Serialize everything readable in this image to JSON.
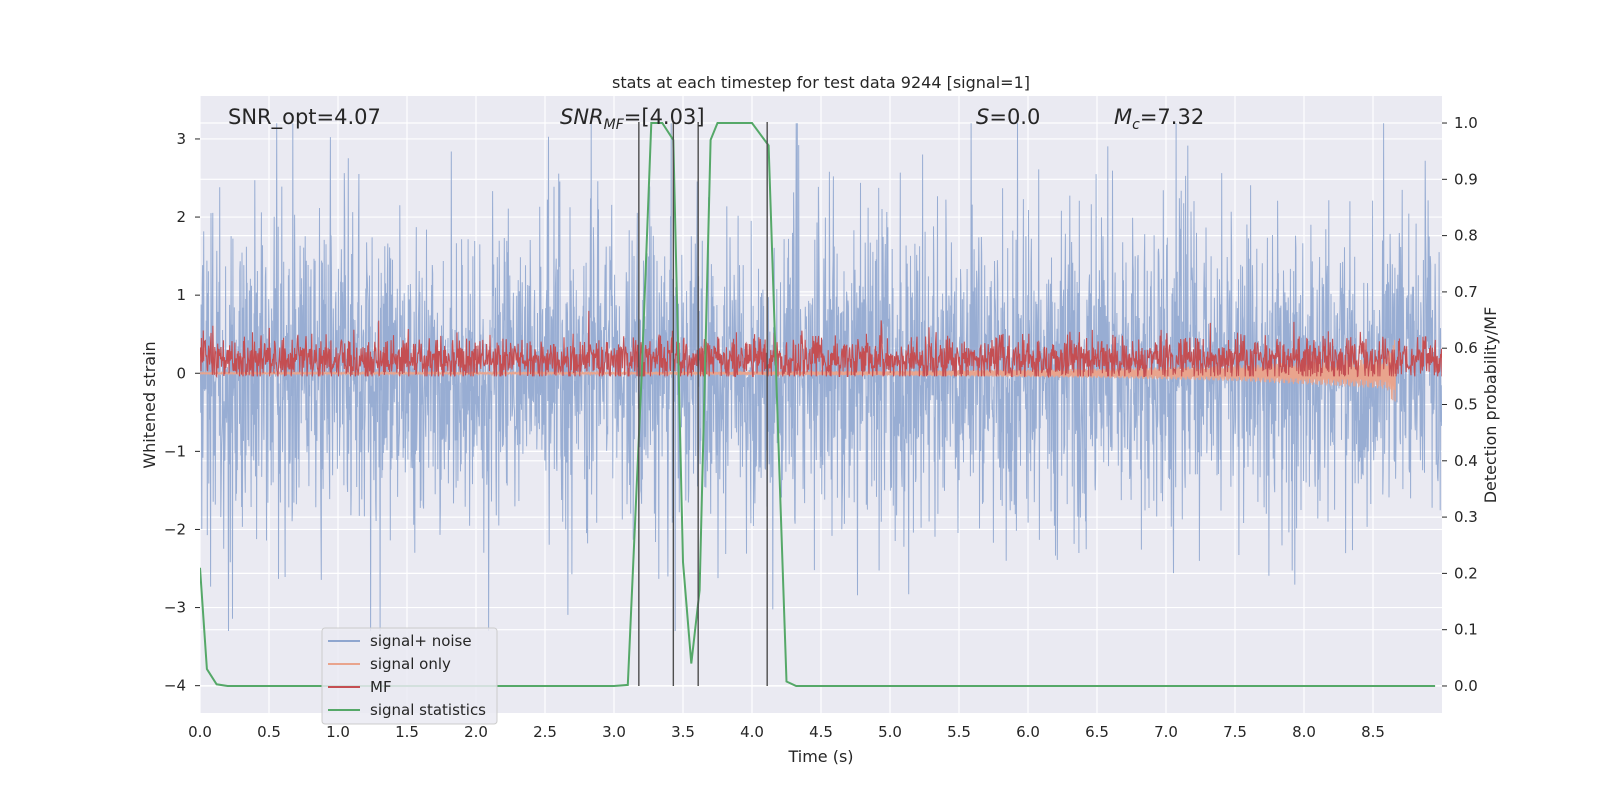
{
  "chart_data": {
    "type": "line",
    "title": "stats at each timestep for test data 9244 [signal=1]",
    "xlabel": "Time (s)",
    "ylabel": "Whitened strain",
    "ylabel_right": "Detection probability/MF",
    "xlim": [
      0.0,
      9.0
    ],
    "ylim": [
      -4.35,
      3.55
    ],
    "ylim_right": [
      -0.048,
      1.048
    ],
    "xticks": [
      "0.0",
      "0.5",
      "1.0",
      "1.5",
      "2.0",
      "2.5",
      "3.0",
      "3.5",
      "4.0",
      "4.5",
      "5.0",
      "5.5",
      "6.0",
      "6.5",
      "7.0",
      "7.5",
      "8.0",
      "8.5"
    ],
    "yticks": [
      "3",
      "2",
      "1",
      "0",
      "−1",
      "−2",
      "−3",
      "−4"
    ],
    "yticks_right": [
      "1.0",
      "0.9",
      "0.8",
      "0.7",
      "0.6",
      "0.5",
      "0.4",
      "0.3",
      "0.2",
      "0.1",
      "0.0"
    ],
    "grid": true,
    "legend_position": "lower-left",
    "annotations": {
      "snr_opt": "SNR_opt=4.07",
      "snr_mf_main": "SNR",
      "snr_mf_sub": "MF",
      "snr_mf_rest": "=[4.03]",
      "s_italic": "S",
      "s_rest": "=0.0",
      "mc_main": "M",
      "mc_sub": "c",
      "mc_rest": "=7.32"
    },
    "vlines": [
      3.18,
      3.43,
      3.61,
      4.11
    ],
    "series": [
      {
        "name": "signal+ noise",
        "color": "#8fa6cf",
        "axis": "left",
        "description_range": [
          -2.9,
          3.1
        ],
        "samples_per_second": 4096
      },
      {
        "name": "signal only",
        "color": "#e9a48d",
        "axis": "left",
        "envelope": {
          "t": [
            0.0,
            3.0,
            5.0,
            6.5,
            7.5,
            8.2,
            8.6,
            8.66,
            8.67
          ],
          "amp": [
            0.01,
            0.015,
            0.03,
            0.06,
            0.1,
            0.16,
            0.2,
            0.45,
            0.0
          ]
        }
      },
      {
        "name": "MF",
        "color": "#c44e52",
        "axis": "right",
        "baseline": 0.58,
        "range": [
          0.55,
          0.68
        ]
      },
      {
        "name": "signal statistics",
        "color": "#55a868",
        "axis": "right",
        "x": [
          0.0,
          0.05,
          0.12,
          0.2,
          0.3,
          3.0,
          3.1,
          3.2,
          3.27,
          3.35,
          3.43,
          3.5,
          3.56,
          3.62,
          3.7,
          3.75,
          3.85,
          4.0,
          4.12,
          4.2,
          4.25,
          4.32,
          8.95
        ],
        "y": [
          0.21,
          0.03,
          0.003,
          0.0,
          0.0,
          0.0,
          0.002,
          0.55,
          1.0,
          1.0,
          0.97,
          0.22,
          0.04,
          0.17,
          0.97,
          1.0,
          1.0,
          1.0,
          0.96,
          0.37,
          0.008,
          0.0,
          0.0
        ]
      }
    ]
  }
}
